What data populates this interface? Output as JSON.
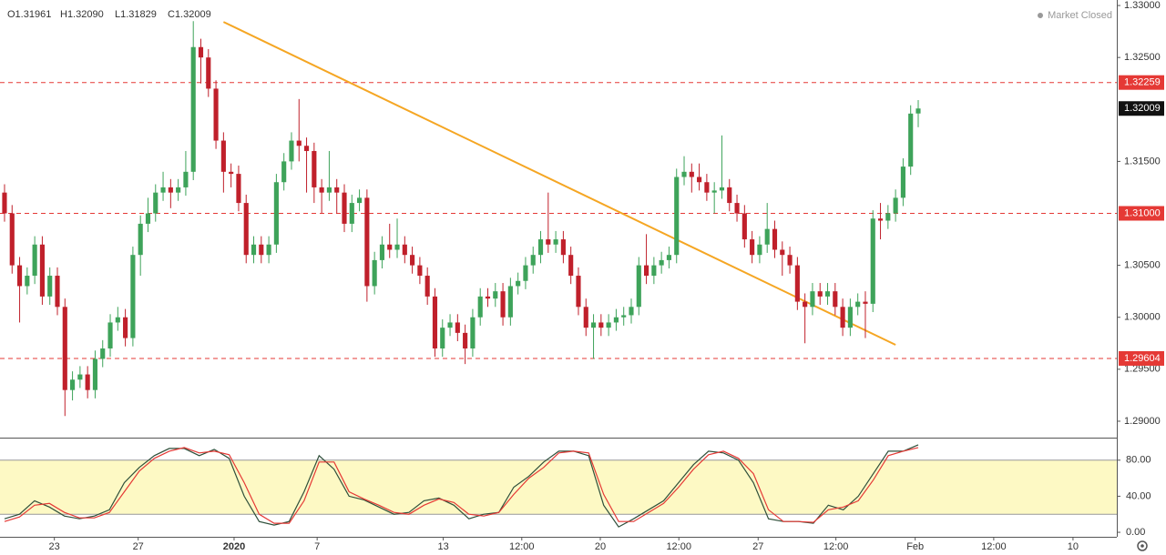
{
  "chart_data": [
    {
      "type": "candlestick",
      "header": [
        "O1.31961",
        "H1.32090",
        "L1.31829",
        "C1.32009"
      ],
      "status": "Market Closed",
      "up_color": "#3ea35a",
      "down_color": "#c0202b",
      "open": [
        1.312,
        1.31,
        1.305,
        1.303,
        1.304,
        1.307,
        1.302,
        1.304,
        1.301,
        1.293,
        1.294,
        1.2945,
        1.293,
        1.296,
        1.297,
        1.2995,
        1.3,
        1.298,
        1.306,
        1.309,
        1.31,
        1.312,
        1.3125,
        1.312,
        1.3125,
        1.314,
        1.326,
        1.325,
        1.322,
        1.317,
        1.314,
        1.3138,
        1.311,
        1.306,
        1.307,
        1.306,
        1.307,
        1.313,
        1.315,
        1.317,
        1.3165,
        1.316,
        1.3125,
        1.312,
        1.3125,
        1.312,
        1.309,
        1.311,
        1.3115,
        1.303,
        1.3055,
        1.307,
        1.3065,
        1.307,
        1.306,
        1.305,
        1.304,
        1.302,
        1.297,
        1.299,
        1.2995,
        1.2985,
        1.297,
        1.3,
        1.302,
        1.3018,
        1.3025,
        1.3,
        1.303,
        1.3035,
        1.305,
        1.306,
        1.3075,
        1.307,
        1.3075,
        1.306,
        1.304,
        1.301,
        1.299,
        1.2995,
        1.299,
        1.2995,
        1.3,
        1.3002,
        1.301,
        1.305,
        1.304,
        1.305,
        1.3055,
        1.306,
        1.3135,
        1.314,
        1.3135,
        1.313,
        1.312,
        1.3122,
        1.3125,
        1.311,
        1.31,
        1.3075,
        1.306,
        1.307,
        1.3085,
        1.3065,
        1.306,
        1.305,
        1.3015,
        1.301,
        1.3025,
        1.302,
        1.3025,
        1.301,
        1.299,
        1.301,
        1.3015,
        1.3013,
        1.3095,
        1.3093,
        1.31,
        1.3115,
        1.3145,
        1.31961
      ],
      "high": [
        1.3128,
        1.3108,
        1.3058,
        1.3048,
        1.3078,
        1.3078,
        1.3048,
        1.3048,
        1.3018,
        1.2948,
        1.2953,
        1.2953,
        1.2968,
        1.2978,
        1.3003,
        1.301,
        1.3008,
        1.3068,
        1.3098,
        1.3115,
        1.3128,
        1.314,
        1.3133,
        1.3133,
        1.316,
        1.3285,
        1.3268,
        1.3258,
        1.3228,
        1.3178,
        1.3148,
        1.3146,
        1.3118,
        1.3078,
        1.3078,
        1.3078,
        1.3138,
        1.3158,
        1.3178,
        1.321,
        1.3173,
        1.3168,
        1.3133,
        1.316,
        1.3133,
        1.3128,
        1.3118,
        1.3123,
        1.3123,
        1.3063,
        1.3078,
        1.309,
        1.3095,
        1.3078,
        1.3068,
        1.3058,
        1.3048,
        1.3028,
        1.2998,
        1.3003,
        1.3003,
        1.2993,
        1.3008,
        1.3028,
        1.3028,
        1.3033,
        1.3033,
        1.3038,
        1.3043,
        1.3058,
        1.3068,
        1.3083,
        1.312,
        1.3083,
        1.3083,
        1.3068,
        1.3048,
        1.3018,
        1.3003,
        1.3003,
        1.3003,
        1.3008,
        1.301,
        1.3018,
        1.3058,
        1.308,
        1.3058,
        1.3063,
        1.3068,
        1.3143,
        1.3155,
        1.3148,
        1.3148,
        1.3138,
        1.313,
        1.3175,
        1.3133,
        1.3118,
        1.3108,
        1.3083,
        1.3078,
        1.311,
        1.3093,
        1.3073,
        1.3068,
        1.3058,
        1.3023,
        1.3033,
        1.3033,
        1.3033,
        1.3033,
        1.3018,
        1.3018,
        1.3023,
        1.3025,
        1.3103,
        1.311,
        1.3108,
        1.3123,
        1.3153,
        1.3204,
        1.3209
      ],
      "low": [
        1.3092,
        1.3042,
        1.2995,
        1.3022,
        1.3032,
        1.3012,
        1.3012,
        1.3002,
        1.2905,
        1.292,
        1.2932,
        1.2922,
        1.2922,
        1.2952,
        1.2962,
        1.2987,
        1.2972,
        1.2972,
        1.304,
        1.3082,
        1.3092,
        1.3112,
        1.3105,
        1.3112,
        1.3117,
        1.3132,
        1.3225,
        1.3212,
        1.3162,
        1.312,
        1.3125,
        1.3102,
        1.3052,
        1.3052,
        1.3052,
        1.3052,
        1.3062,
        1.3122,
        1.3142,
        1.315,
        1.312,
        1.311,
        1.31,
        1.3112,
        1.31,
        1.3082,
        1.3082,
        1.3102,
        1.3015,
        1.3022,
        1.3047,
        1.3057,
        1.3057,
        1.3052,
        1.3042,
        1.3032,
        1.3012,
        1.2962,
        1.2962,
        1.2982,
        1.2977,
        1.2955,
        1.2962,
        1.2992,
        1.301,
        1.301,
        1.2992,
        1.2992,
        1.3022,
        1.3027,
        1.3042,
        1.3052,
        1.3062,
        1.3062,
        1.3052,
        1.3032,
        1.3002,
        1.2982,
        1.296,
        1.2982,
        1.2982,
        1.2987,
        1.2992,
        1.2994,
        1.3002,
        1.3032,
        1.3032,
        1.3042,
        1.3047,
        1.3052,
        1.3127,
        1.312,
        1.3122,
        1.3112,
        1.31,
        1.3114,
        1.3102,
        1.3092,
        1.3067,
        1.3052,
        1.3052,
        1.3062,
        1.3057,
        1.304,
        1.3042,
        1.3007,
        1.2975,
        1.3002,
        1.3012,
        1.3012,
        1.3002,
        1.2982,
        1.2982,
        1.3002,
        1.298,
        1.3005,
        1.3075,
        1.3085,
        1.3092,
        1.3107,
        1.3137,
        1.31829
      ],
      "close": [
        1.31,
        1.305,
        1.303,
        1.304,
        1.307,
        1.302,
        1.304,
        1.301,
        1.293,
        1.294,
        1.2945,
        1.293,
        1.296,
        1.297,
        1.2995,
        1.3,
        1.298,
        1.306,
        1.309,
        1.31,
        1.312,
        1.3125,
        1.312,
        1.3125,
        1.314,
        1.326,
        1.325,
        1.322,
        1.317,
        1.314,
        1.3138,
        1.311,
        1.306,
        1.307,
        1.306,
        1.307,
        1.313,
        1.315,
        1.317,
        1.3165,
        1.316,
        1.3125,
        1.312,
        1.3125,
        1.312,
        1.309,
        1.311,
        1.3115,
        1.303,
        1.3055,
        1.307,
        1.3065,
        1.307,
        1.306,
        1.305,
        1.304,
        1.302,
        1.297,
        1.299,
        1.2995,
        1.2985,
        1.297,
        1.3,
        1.302,
        1.3018,
        1.3025,
        1.3,
        1.303,
        1.3035,
        1.305,
        1.306,
        1.3075,
        1.307,
        1.3075,
        1.306,
        1.304,
        1.301,
        1.299,
        1.2995,
        1.299,
        1.2995,
        1.3,
        1.3002,
        1.301,
        1.305,
        1.304,
        1.305,
        1.3055,
        1.306,
        1.3135,
        1.314,
        1.3135,
        1.313,
        1.312,
        1.3122,
        1.3125,
        1.311,
        1.31,
        1.3075,
        1.306,
        1.307,
        1.3085,
        1.3065,
        1.306,
        1.305,
        1.3015,
        1.301,
        1.3025,
        1.302,
        1.3025,
        1.301,
        1.299,
        1.301,
        1.3015,
        1.3013,
        1.3095,
        1.3093,
        1.31,
        1.3115,
        1.3145,
        1.3196,
        1.32009
      ],
      "xlim": [
        -0.6,
        147.3
      ],
      "ylim": [
        1.28842,
        1.33053
      ],
      "yticks": [
        {
          "value": 1.33,
          "label": "1.33000"
        },
        {
          "value": 1.325,
          "label": "1.32500"
        },
        {
          "value": 1.315,
          "label": "1.31500"
        },
        {
          "value": 1.305,
          "label": "1.30500"
        },
        {
          "value": 1.3,
          "label": "1.30000"
        },
        {
          "value": 1.295,
          "label": "1.29500"
        },
        {
          "value": 1.29,
          "label": "1.29000"
        }
      ],
      "xticks": [
        {
          "value": 6.6,
          "label": "23"
        },
        {
          "value": 17.7,
          "label": "27"
        },
        {
          "value": 30.4,
          "label": "2020"
        },
        {
          "value": 41.4,
          "label": "7"
        },
        {
          "value": 58.1,
          "label": "13"
        },
        {
          "value": 68.5,
          "label": "12:00"
        },
        {
          "value": 78.9,
          "label": "20"
        },
        {
          "value": 89.3,
          "label": "12:00"
        },
        {
          "value": 99.8,
          "label": "27"
        },
        {
          "value": 110.1,
          "label": "12:00"
        },
        {
          "value": 120.6,
          "label": "Feb"
        },
        {
          "value": 131,
          "label": "12:00"
        },
        {
          "value": 141.5,
          "label": "10"
        }
      ],
      "levels": [
        {
          "value": 1.32259,
          "label": "1.32259"
        },
        {
          "value": 1.31,
          "label": "1.31000"
        },
        {
          "value": 1.29604,
          "label": "1.29604"
        }
      ],
      "level_color": "#e53935",
      "trendline": {
        "x": [
          29,
          118
        ],
        "y": [
          1.32842,
          1.29735
        ],
        "color": "#f5a623"
      }
    },
    {
      "type": "line",
      "ylim": [
        -5,
        105
      ],
      "yticks": [
        {
          "value": 80,
          "label": "80.00"
        },
        {
          "value": 40,
          "label": "40.00"
        },
        {
          "value": 0,
          "label": "0.00"
        }
      ],
      "band": [
        20,
        80
      ],
      "band_color": "#fdf9c4",
      "series": [
        {
          "color": "#2f4f3a",
          "values": [
            15,
            20,
            35,
            28,
            18,
            15,
            18,
            25,
            55,
            72,
            85,
            93,
            93,
            85,
            92,
            82,
            40,
            12,
            8,
            12,
            45,
            85,
            70,
            40,
            36,
            28,
            20,
            22,
            35,
            38,
            30,
            15,
            20,
            22,
            50,
            62,
            78,
            90,
            90,
            85,
            30,
            6,
            15,
            25,
            35,
            55,
            75,
            90,
            88,
            80,
            55,
            15,
            12,
            12,
            10,
            30,
            25,
            40,
            65,
            90,
            90,
            97
          ]
        },
        {
          "color": "#e53935",
          "values": [
            12,
            17,
            30,
            32,
            22,
            16,
            16,
            22,
            45,
            68,
            82,
            90,
            94,
            88,
            90,
            86,
            55,
            20,
            10,
            10,
            35,
            78,
            78,
            45,
            37,
            30,
            22,
            20,
            30,
            37,
            33,
            20,
            18,
            22,
            42,
            60,
            72,
            88,
            90,
            88,
            42,
            12,
            12,
            22,
            32,
            50,
            70,
            86,
            90,
            82,
            65,
            25,
            12,
            12,
            11,
            25,
            28,
            35,
            58,
            85,
            90,
            94
          ]
        }
      ]
    }
  ]
}
